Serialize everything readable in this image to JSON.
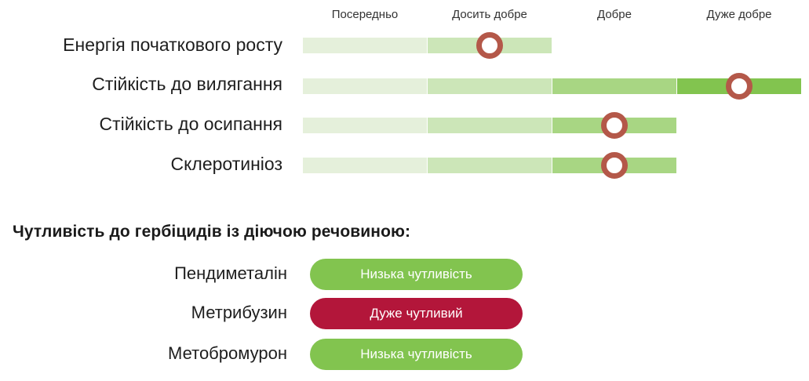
{
  "scale": {
    "headers": [
      "Посередньо",
      "Досить добре",
      "Добре",
      "Дуже добре"
    ]
  },
  "traits": [
    {
      "label": "Енергія початкового росту",
      "rating": 2
    },
    {
      "label": "Стійкість до вилягання",
      "rating": 4
    },
    {
      "label": "Стійкість до осипання",
      "rating": 3
    },
    {
      "label": "Склеротиніоз",
      "rating": 3
    }
  ],
  "herbicides": {
    "title": "Чутливість до гербіцидів із діючою речовиною:",
    "items": [
      {
        "label": "Пендиметалін",
        "sensitivity": "Низька чутливість",
        "level": "low"
      },
      {
        "label": "Метрибузин",
        "sensitivity": "Дуже чутливий",
        "level": "high"
      },
      {
        "label": "Метобромурон",
        "sensitivity": "Низька чутливість",
        "level": "low"
      }
    ]
  },
  "colors": {
    "seg1": "#e5f0db",
    "seg2": "#cce6b8",
    "seg3": "#a8d683",
    "seg4": "#82c44f",
    "marker_ring": "#b45849",
    "low_sensitivity": "#82c44f",
    "high_sensitivity": "#b3163a"
  }
}
